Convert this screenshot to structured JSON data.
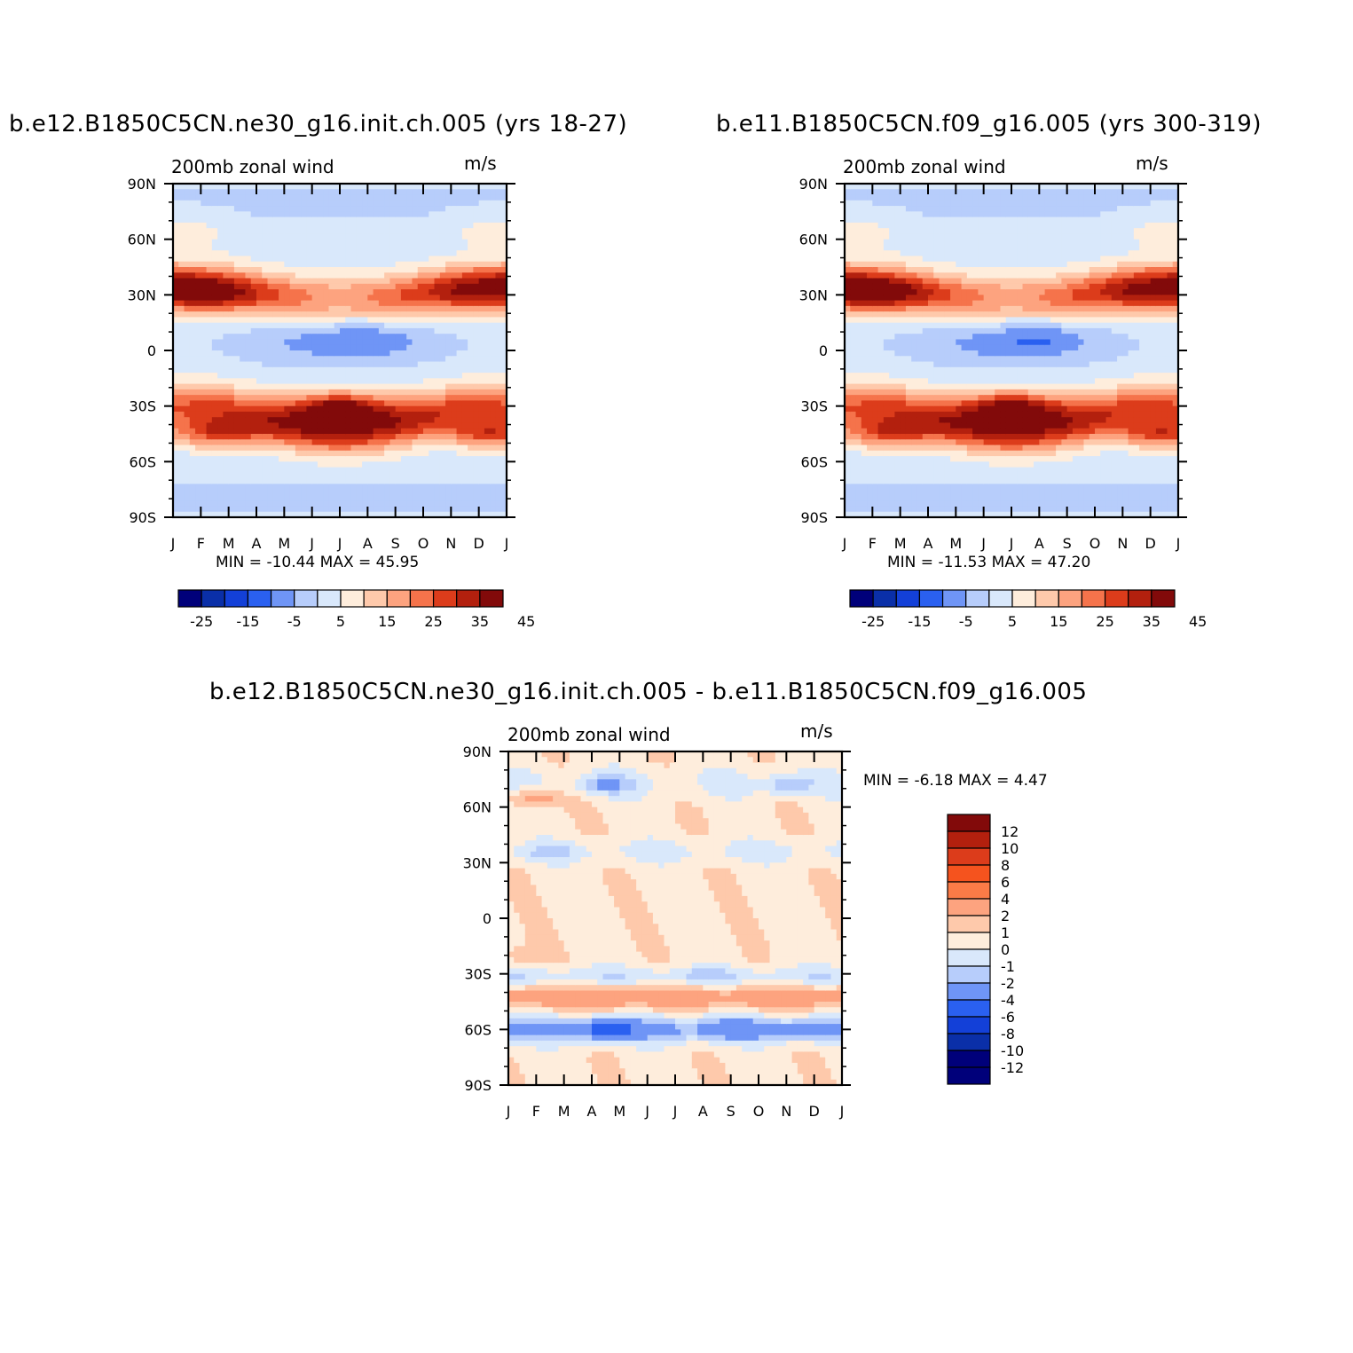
{
  "chart_data": [
    {
      "type": "heatmap",
      "title": "b.e12.B1850C5CN.ne30_g16.init.ch.005 (yrs 18-27)",
      "left_label": "200mb zonal wind",
      "right_label": "m/s",
      "x_ticks": [
        "J",
        "F",
        "M",
        "A",
        "M",
        "J",
        "J",
        "A",
        "S",
        "O",
        "N",
        "D",
        "J"
      ],
      "y_ticks": [
        "90N",
        "60N",
        "30N",
        "0",
        "30S",
        "60S",
        "90S"
      ],
      "xlim": [
        0,
        12
      ],
      "ylim": [
        -90,
        90
      ],
      "stats": "MIN = -10.44 MAX =  45.95",
      "colorbar": {
        "orientation": "horizontal",
        "labels": [
          "-25",
          "-15",
          "-5",
          "5",
          "15",
          "25",
          "35",
          "45"
        ],
        "levels": [
          -25,
          -20,
          -15,
          -10,
          -5,
          0,
          5,
          10,
          15,
          20,
          25,
          30,
          35,
          40,
          45
        ],
        "colors": [
          "#00007a",
          "#0a2fa8",
          "#1340d8",
          "#2a60f0",
          "#6f95f6",
          "#b7cdfb",
          "#d9e8fb",
          "#feeddc",
          "#fec9ab",
          "#fda37f",
          "#f5734b",
          "#dc3c1b",
          "#b3200e",
          "#820a0a"
        ]
      },
      "features": [
        {
          "month": 1.0,
          "lat": 30,
          "value": 45
        },
        {
          "month": 11.5,
          "lat": 32,
          "value": 40
        },
        {
          "month": 6.0,
          "lat": -30,
          "value": 45
        },
        {
          "month": 7.0,
          "lat": 7,
          "value": -10
        },
        {
          "month": 1.5,
          "lat": -45,
          "value": 33
        },
        {
          "month": 11.5,
          "lat": -45,
          "value": 33
        }
      ]
    },
    {
      "type": "heatmap",
      "title": "b.e11.B1850C5CN.f09_g16.005 (yrs 300-319)",
      "left_label": "200mb zonal wind",
      "right_label": "m/s",
      "x_ticks": [
        "J",
        "F",
        "M",
        "A",
        "M",
        "J",
        "J",
        "A",
        "S",
        "O",
        "N",
        "D",
        "J"
      ],
      "y_ticks": [
        "90N",
        "60N",
        "30N",
        "0",
        "30S",
        "60S",
        "90S"
      ],
      "xlim": [
        0,
        12
      ],
      "ylim": [
        -90,
        90
      ],
      "stats": "MIN = -11.53 MAX =  47.20",
      "colorbar": {
        "orientation": "horizontal",
        "labels": [
          "-25",
          "-15",
          "-5",
          "5",
          "15",
          "25",
          "35",
          "45"
        ],
        "levels": [
          -25,
          -20,
          -15,
          -10,
          -5,
          0,
          5,
          10,
          15,
          20,
          25,
          30,
          35,
          40,
          45
        ],
        "colors": [
          "#00007a",
          "#0a2fa8",
          "#1340d8",
          "#2a60f0",
          "#6f95f6",
          "#b7cdfb",
          "#d9e8fb",
          "#feeddc",
          "#fec9ab",
          "#fda37f",
          "#f5734b",
          "#dc3c1b",
          "#b3200e",
          "#820a0a"
        ]
      },
      "features": [
        {
          "month": 1.0,
          "lat": 30,
          "value": 46
        },
        {
          "month": 11.5,
          "lat": 32,
          "value": 40
        },
        {
          "month": 6.0,
          "lat": -30,
          "value": 46
        },
        {
          "month": 7.0,
          "lat": 7,
          "value": -11
        },
        {
          "month": 1.5,
          "lat": -45,
          "value": 33
        },
        {
          "month": 11.5,
          "lat": -45,
          "value": 33
        }
      ]
    },
    {
      "type": "heatmap",
      "title": "b.e12.B1850C5CN.ne30_g16.init.ch.005 - b.e11.B1850C5CN.f09_g16.005",
      "left_label": "200mb zonal wind",
      "right_label": "m/s",
      "x_ticks": [
        "J",
        "F",
        "M",
        "A",
        "M",
        "J",
        "J",
        "A",
        "S",
        "O",
        "N",
        "D",
        "J"
      ],
      "y_ticks": [
        "90N",
        "60N",
        "30N",
        "0",
        "30S",
        "60S",
        "90S"
      ],
      "xlim": [
        0,
        12
      ],
      "ylim": [
        -90,
        90
      ],
      "stats": "MIN =   -6.18 MAX =    4.47",
      "colorbar": {
        "orientation": "vertical",
        "labels": [
          "12",
          "10",
          "8",
          "6",
          "4",
          "2",
          "1",
          "0",
          "-1",
          "-2",
          "-4",
          "-6",
          "-8",
          "-10",
          "-12"
        ],
        "levels": [
          12,
          10,
          8,
          6,
          4,
          2,
          1,
          0,
          -1,
          -2,
          -4,
          -6,
          -8,
          -10,
          -12
        ],
        "colors": [
          "#820a0a",
          "#b3200e",
          "#dc3c1b",
          "#f5531e",
          "#fb7b47",
          "#fda37f",
          "#fec9ab",
          "#feeddc",
          "#d9e8fb",
          "#b7cdfb",
          "#6f95f6",
          "#2a60f0",
          "#1340d8",
          "#0a2fa8",
          "#00007a",
          "#00007a"
        ]
      },
      "features": [
        {
          "month": 1.0,
          "lat": 65,
          "value": 3
        },
        {
          "month": 3.5,
          "lat": 72,
          "value": -3
        },
        {
          "month": 10.0,
          "lat": 72,
          "value": -2
        },
        {
          "month": 1.5,
          "lat": 35,
          "value": -2
        },
        {
          "month": 3.5,
          "lat": -43,
          "value": 4
        },
        {
          "month": 3.5,
          "lat": -60,
          "value": -6
        },
        {
          "month": 8.0,
          "lat": -60,
          "value": -4
        },
        {
          "month": 11.0,
          "lat": -60,
          "value": -3
        },
        {
          "month": 7.0,
          "lat": -32,
          "value": -2
        },
        {
          "month": 0.5,
          "lat": -20,
          "value": 2
        }
      ]
    }
  ]
}
